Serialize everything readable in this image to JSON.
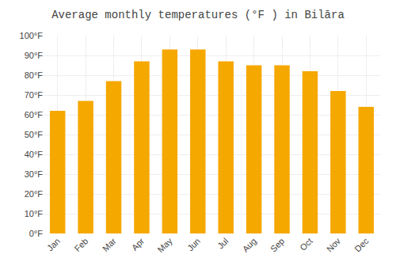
{
  "chart_data": {
    "type": "bar",
    "title": "Average monthly temperatures (°F ) in Bilāra",
    "categories": [
      "Jan",
      "Feb",
      "Mar",
      "Apr",
      "May",
      "Jun",
      "Jul",
      "Aug",
      "Sep",
      "Oct",
      "Nov",
      "Dec"
    ],
    "values": [
      62,
      67,
      77,
      87,
      93,
      93,
      87,
      85,
      85,
      82,
      72,
      64
    ],
    "color": "#F5A800",
    "ylim": [
      0,
      100
    ],
    "yticks": [
      {
        "value": 0,
        "label": "0°F"
      },
      {
        "value": 10,
        "label": "10°F"
      },
      {
        "value": 20,
        "label": "20°F"
      },
      {
        "value": 30,
        "label": "30°F"
      },
      {
        "value": 40,
        "label": "40°F"
      },
      {
        "value": 50,
        "label": "50°F"
      },
      {
        "value": 60,
        "label": "60°F"
      },
      {
        "value": 70,
        "label": "70°F"
      },
      {
        "value": 80,
        "label": "80°F"
      },
      {
        "value": 90,
        "label": "90°F"
      },
      {
        "value": 100,
        "label": "100°F"
      }
    ],
    "grid": true
  }
}
